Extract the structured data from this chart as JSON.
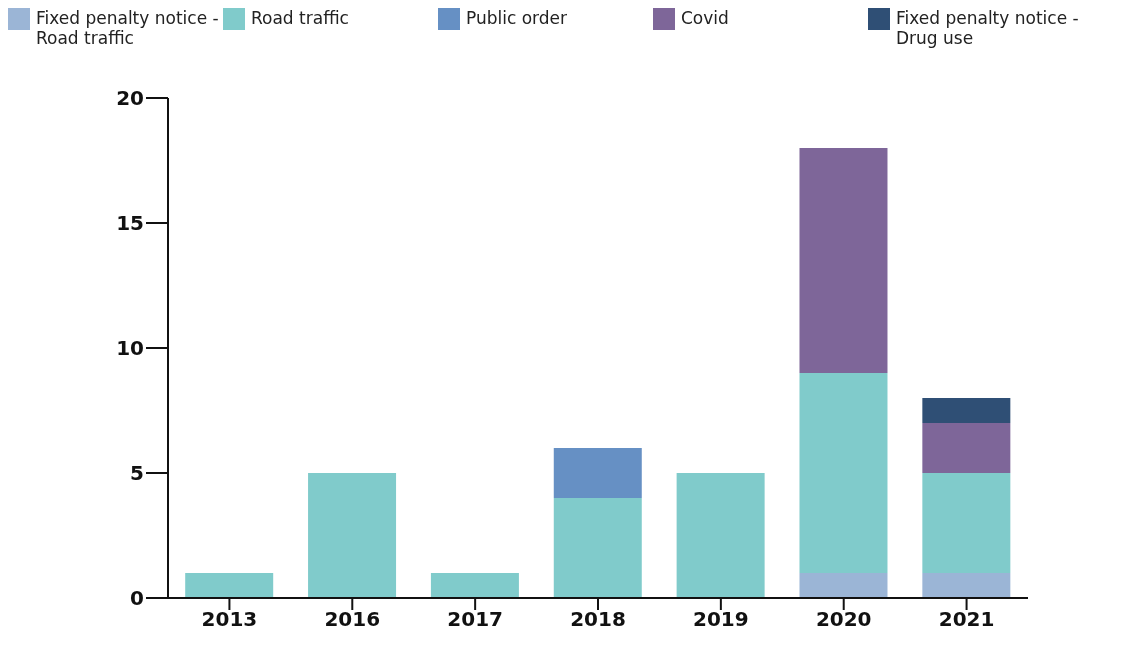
{
  "chart_data": {
    "type": "bar",
    "stacked": true,
    "categories": [
      "2013",
      "2016",
      "2017",
      "2018",
      "2019",
      "2020",
      "2021"
    ],
    "series": [
      {
        "name": "Fixed penalty notice - Road traffic",
        "color": "#9bb5d6",
        "values": [
          0,
          0,
          0,
          0,
          0,
          1,
          1
        ]
      },
      {
        "name": "Road traffic",
        "color": "#80cbcb",
        "values": [
          1,
          5,
          1,
          4,
          5,
          8,
          4
        ]
      },
      {
        "name": "Public order",
        "color": "#6690c4",
        "values": [
          0,
          0,
          0,
          2,
          0,
          0,
          0
        ]
      },
      {
        "name": "Covid",
        "color": "#7e6699",
        "values": [
          0,
          0,
          0,
          0,
          0,
          9,
          2
        ]
      },
      {
        "name": "Fixed penalty notice - Drug use",
        "color": "#2f4f75",
        "values": [
          0,
          0,
          0,
          0,
          0,
          0,
          1
        ]
      }
    ],
    "ylim": [
      0,
      20
    ],
    "yticks": [
      0,
      5,
      10,
      15,
      20
    ],
    "grid": false,
    "legend": "top left"
  }
}
